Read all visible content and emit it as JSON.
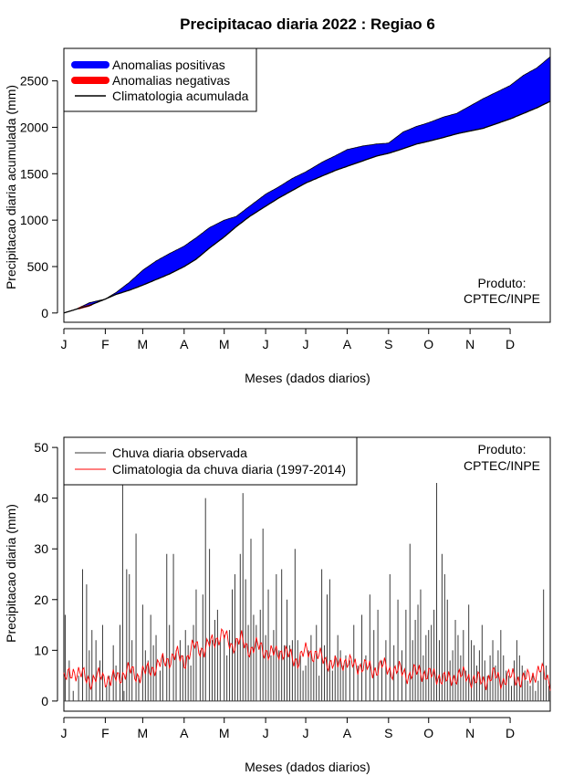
{
  "title": "Precipitacao diaria 2022 : Regiao 6",
  "colors": {
    "positive": "#0000ff",
    "negative": "#ff0000",
    "climatology_line": "#000000",
    "observed_bars": "#3a3a3a",
    "daily_climatology": "#ff0000"
  },
  "chart_data": [
    {
      "type": "area",
      "title": "Precipitacao diaria 2022 : Regiao 6",
      "xlabel": "Meses (dados diarios)",
      "ylabel": "Precipitacao diaria acumulada (mm)",
      "xlim": [
        1,
        365
      ],
      "ylim": [
        -100,
        2850
      ],
      "month_ticks": [
        "J",
        "F",
        "M",
        "A",
        "M",
        "J",
        "J",
        "A",
        "S",
        "O",
        "N",
        "D"
      ],
      "month_start_days": [
        1,
        32,
        60,
        91,
        121,
        152,
        182,
        213,
        244,
        274,
        305,
        335
      ],
      "y_ticks": [
        0,
        500,
        1000,
        1500,
        2000,
        2500
      ],
      "legend": [
        "Anomalias positivas",
        "Anomalias negativas",
        "Climatologia acumulada"
      ],
      "annotation": [
        "Produto:",
        "CPTEC/INPE"
      ],
      "observed_cumulative": {
        "days": [
          1,
          10,
          20,
          32,
          40,
          50,
          60,
          70,
          80,
          91,
          100,
          110,
          121,
          130,
          140,
          152,
          162,
          172,
          182,
          195,
          205,
          213,
          225,
          235,
          244,
          255,
          265,
          274,
          285,
          295,
          305,
          315,
          325,
          335,
          345,
          355,
          365
        ],
        "values": [
          0,
          40,
          110,
          150,
          220,
          330,
          460,
          560,
          640,
          720,
          810,
          920,
          1000,
          1040,
          1150,
          1280,
          1360,
          1450,
          1520,
          1630,
          1700,
          1760,
          1800,
          1820,
          1830,
          1950,
          2010,
          2050,
          2110,
          2150,
          2230,
          2310,
          2380,
          2450,
          2560,
          2640,
          2760
        ]
      },
      "climatology_cumulative": {
        "days": [
          1,
          10,
          20,
          32,
          40,
          50,
          60,
          70,
          80,
          91,
          100,
          110,
          121,
          130,
          140,
          152,
          162,
          172,
          182,
          195,
          205,
          213,
          225,
          235,
          244,
          255,
          265,
          274,
          285,
          295,
          305,
          315,
          325,
          335,
          345,
          355,
          365
        ],
        "values": [
          0,
          40,
          80,
          150,
          200,
          245,
          300,
          360,
          420,
          500,
          580,
          700,
          820,
          930,
          1040,
          1150,
          1240,
          1320,
          1400,
          1480,
          1540,
          1580,
          1640,
          1690,
          1720,
          1770,
          1820,
          1850,
          1890,
          1930,
          1960,
          1990,
          2040,
          2090,
          2150,
          2210,
          2280
        ]
      }
    },
    {
      "type": "bar",
      "title": "",
      "xlabel": "Meses (dados diarios)",
      "ylabel": "Precipitacao diaria (mm)",
      "xlim": [
        1,
        365
      ],
      "ylim": [
        -2,
        52
      ],
      "month_ticks": [
        "J",
        "F",
        "M",
        "A",
        "M",
        "J",
        "J",
        "A",
        "S",
        "O",
        "N",
        "D"
      ],
      "month_start_days": [
        1,
        32,
        60,
        91,
        121,
        152,
        182,
        213,
        244,
        274,
        305,
        335
      ],
      "y_ticks": [
        0,
        10,
        20,
        30,
        40,
        50
      ],
      "legend": [
        "Chuva diaria observada",
        "Climatologia da chuva diaria (1997-2014)"
      ],
      "annotation": [
        "Produto:",
        "CPTEC/INPE"
      ],
      "observed_daily": {
        "days": [
          2,
          5,
          8,
          12,
          15,
          18,
          20,
          22,
          25,
          28,
          30,
          33,
          35,
          38,
          40,
          43,
          45,
          46,
          48,
          50,
          52,
          55,
          57,
          60,
          62,
          64,
          66,
          68,
          70,
          73,
          75,
          78,
          80,
          83,
          85,
          88,
          90,
          92,
          94,
          96,
          98,
          100,
          103,
          105,
          107,
          110,
          112,
          114,
          116,
          118,
          121,
          123,
          125,
          127,
          129,
          131,
          133,
          135,
          137,
          139,
          141,
          143,
          145,
          148,
          150,
          152,
          154,
          156,
          158,
          160,
          162,
          164,
          166,
          168,
          170,
          172,
          174,
          176,
          178,
          180,
          182,
          184,
          186,
          188,
          190,
          192,
          194,
          196,
          198,
          200,
          202,
          204,
          206,
          208,
          210,
          212,
          215,
          218,
          221,
          224,
          227,
          230,
          233,
          236,
          239,
          242,
          245,
          248,
          251,
          254,
          257,
          260,
          262,
          264,
          266,
          268,
          270,
          272,
          274,
          276,
          278,
          280,
          282,
          284,
          286,
          288,
          290,
          292,
          294,
          296,
          298,
          300,
          302,
          304,
          306,
          308,
          310,
          312,
          314,
          316,
          318,
          320,
          322,
          324,
          326,
          328,
          330,
          332,
          334,
          336,
          338,
          340,
          342,
          344,
          346,
          348,
          350,
          352,
          354,
          356,
          358,
          360,
          362,
          364
        ],
        "values": [
          17,
          8,
          2,
          5,
          26,
          23,
          10,
          14,
          12,
          8,
          15,
          3,
          5,
          11,
          7,
          15,
          46,
          2,
          26,
          25,
          12,
          33,
          5,
          19,
          10,
          8,
          17,
          11,
          13,
          6,
          9,
          29,
          15,
          29,
          10,
          12,
          9,
          14,
          11,
          7,
          15,
          22,
          10,
          21,
          40,
          30,
          12,
          16,
          18,
          12,
          13,
          9,
          14,
          22,
          25,
          12,
          29,
          41,
          24,
          15,
          32,
          17,
          15,
          18,
          34,
          13,
          22,
          9,
          14,
          25,
          10,
          26,
          11,
          20,
          11,
          12,
          30,
          12,
          9,
          6,
          7,
          10,
          13,
          8,
          15,
          5,
          26,
          11,
          21,
          24,
          6,
          9,
          13,
          10,
          7,
          9,
          8,
          15,
          7,
          17,
          9,
          21,
          14,
          18,
          8,
          12,
          25,
          11,
          20,
          10,
          18,
          31,
          12,
          16,
          19,
          22,
          9,
          13,
          14,
          15,
          18,
          43,
          12,
          29,
          25,
          20,
          8,
          10,
          16,
          13,
          9,
          14,
          6,
          19,
          12,
          11,
          7,
          10,
          15,
          8,
          5,
          9,
          12,
          7,
          10,
          14,
          9,
          6,
          5,
          3,
          8,
          12,
          9,
          7,
          6,
          4,
          3,
          5,
          2,
          4,
          6,
          22,
          7,
          3
        ]
      },
      "climatology_daily": {
        "days": [
          1,
          8,
          15,
          22,
          29,
          36,
          43,
          50,
          57,
          64,
          71,
          78,
          85,
          92,
          99,
          106,
          113,
          120,
          127,
          134,
          141,
          148,
          155,
          162,
          169,
          176,
          183,
          190,
          197,
          204,
          211,
          218,
          225,
          232,
          239,
          246,
          253,
          260,
          267,
          274,
          281,
          288,
          295,
          302,
          309,
          316,
          323,
          330,
          337,
          344,
          351,
          358,
          365
        ],
        "values": [
          4,
          6,
          5,
          4,
          5,
          4,
          5,
          6,
          5,
          6,
          7,
          8,
          9,
          8,
          11,
          10,
          12,
          13,
          11,
          12,
          10,
          11,
          9,
          10,
          9,
          8,
          10,
          9,
          8,
          7,
          8,
          7,
          7,
          6,
          7,
          6,
          6,
          5,
          6,
          5,
          5,
          4,
          5,
          5,
          4,
          4,
          5,
          4,
          5,
          4,
          5,
          6,
          4
        ]
      }
    }
  ]
}
